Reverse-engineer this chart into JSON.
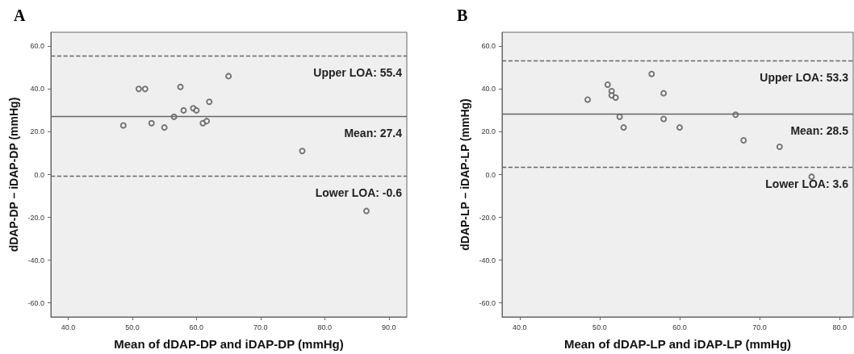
{
  "chart_data": [
    {
      "type": "scatter",
      "title": "A",
      "xlabel": "Mean of dDAP-DP and iDAP-DP (mmHg)",
      "ylabel": "dDAP-DP – iDAP-DP (mmHg)",
      "x": [
        48.6,
        51.0,
        52.0,
        53.0,
        55.0,
        56.5,
        57.5,
        58.0,
        59.5,
        60.0,
        61.0,
        61.6,
        62.0,
        65.0,
        76.5,
        86.5
      ],
      "series": [
        {
          "color": "#555555",
          "values": [
            23,
            40,
            40,
            24,
            22,
            27,
            41,
            30,
            31,
            30,
            24,
            25,
            34,
            46,
            11,
            -17
          ]
        }
      ],
      "xlim": [
        37.3,
        92.8
      ],
      "ylim": [
        -66.5,
        66.5
      ],
      "xticks": [
        {
          "value": 40,
          "label": "40.0"
        },
        {
          "value": 50,
          "label": "50.0"
        },
        {
          "value": 60,
          "label": "60.0"
        },
        {
          "value": 70,
          "label": "70.0"
        },
        {
          "value": 80,
          "label": "80.0"
        },
        {
          "value": 90,
          "label": "90.0"
        }
      ],
      "yticks": [
        {
          "value": -60,
          "label": "-60.0"
        },
        {
          "value": -40,
          "label": "-40.0"
        },
        {
          "value": -20,
          "label": "-20.0"
        },
        {
          "value": 0,
          "label": "0.0"
        },
        {
          "value": 20,
          "label": "20.0"
        },
        {
          "value": 40,
          "label": "40.0"
        },
        {
          "value": 60,
          "label": "60.0"
        }
      ],
      "ref_lines": [
        {
          "axis": "y",
          "value": 55.4,
          "label": "Upper LOA: 55.4",
          "line_style": "dashed",
          "color": "#666666"
        },
        {
          "axis": "y",
          "value": 27.4,
          "label": "Mean: 27.4",
          "line_style": "solid",
          "color": "#666666"
        },
        {
          "axis": "y",
          "value": -0.6,
          "label": "Lower LOA: -0.6",
          "line_style": "dashed",
          "color": "#666666"
        }
      ],
      "marker": "circle"
    },
    {
      "type": "scatter",
      "title": "B",
      "xlabel": "Mean of dDAP-LP and iDAP-LP (mmHg)",
      "ylabel": "dDAP-LP – iDAP-LP (mmHg)",
      "x": [
        48.5,
        51.0,
        51.5,
        51.5,
        52.0,
        52.5,
        53.0,
        56.5,
        58.0,
        58.0,
        60.0,
        67.0,
        68.0,
        72.5,
        76.5
      ],
      "series": [
        {
          "color": "#555555",
          "values": [
            35,
            42,
            39,
            37,
            36,
            27,
            22,
            47,
            38,
            26,
            22,
            28,
            16,
            13,
            -1
          ]
        }
      ],
      "xlim": [
        37.8,
        81.7
      ],
      "ylim": [
        -66.5,
        66.5
      ],
      "xticks": [
        {
          "value": 40,
          "label": "40.0"
        },
        {
          "value": 50,
          "label": "50.0"
        },
        {
          "value": 60,
          "label": "60.0"
        },
        {
          "value": 70,
          "label": "70.0"
        },
        {
          "value": 80,
          "label": "80.0"
        }
      ],
      "yticks": [
        {
          "value": -60,
          "label": "-60.0"
        },
        {
          "value": -40,
          "label": "-40.0"
        },
        {
          "value": -20,
          "label": "-20.0"
        },
        {
          "value": 0,
          "label": "0.0"
        },
        {
          "value": 20,
          "label": "20.0"
        },
        {
          "value": 40,
          "label": "40.0"
        },
        {
          "value": 60,
          "label": "60.0"
        }
      ],
      "ref_lines": [
        {
          "axis": "y",
          "value": 53.3,
          "label": "Upper LOA: 53.3",
          "line_style": "dashed",
          "color": "#666666"
        },
        {
          "axis": "y",
          "value": 28.5,
          "label": "Mean: 28.5",
          "line_style": "solid",
          "color": "#666666"
        },
        {
          "axis": "y",
          "value": 3.6,
          "label": "Lower LOA: 3.6",
          "line_style": "dashed",
          "color": "#666666"
        }
      ],
      "marker": "circle"
    }
  ]
}
